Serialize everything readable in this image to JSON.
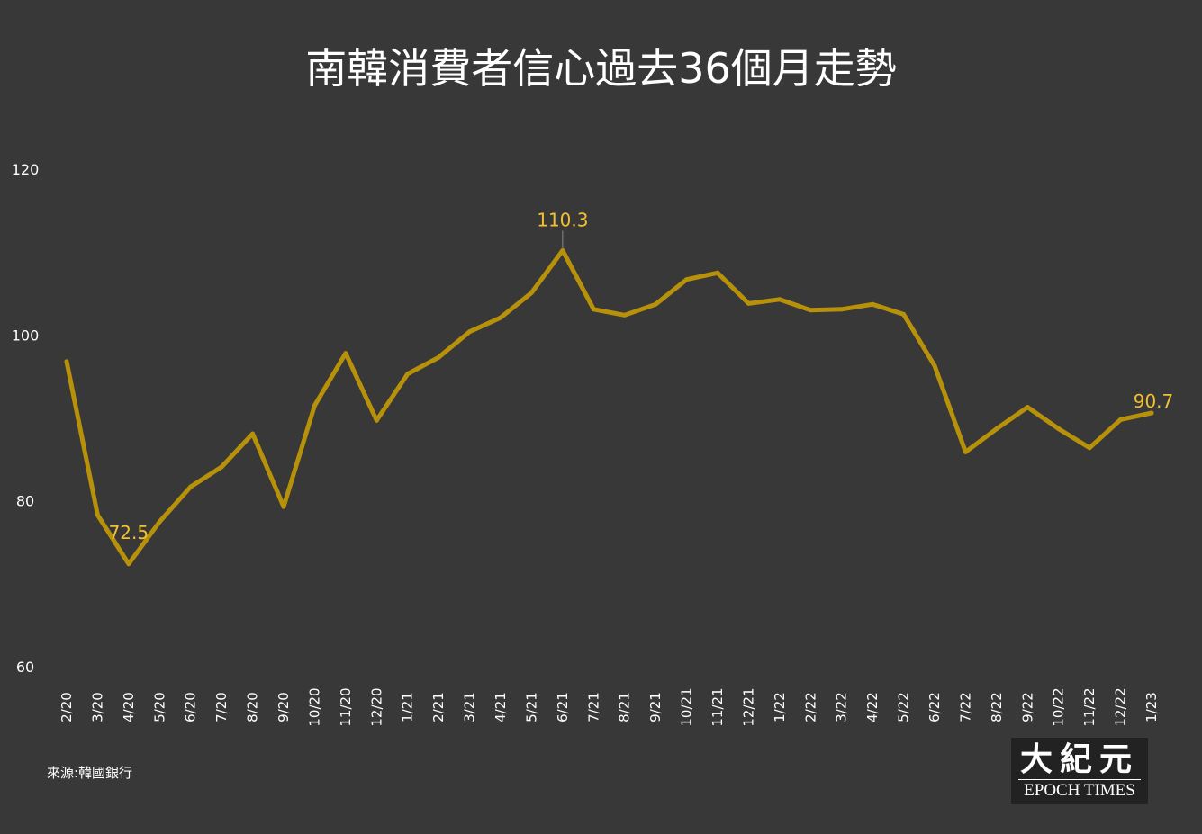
{
  "title": "南韓消費者信心過去36個月走勢",
  "source": "來源:韓國銀行",
  "logo": {
    "chinese": "大紀元",
    "english": "EPOCH TIMES"
  },
  "colors": {
    "background": "#383838",
    "line": "#b8910a",
    "label": "#f2c12e",
    "axis_text": "#ffffff"
  },
  "chart_data": {
    "type": "line",
    "title": "南韓消費者信心過去36個月走勢",
    "ylim": [
      60,
      120
    ],
    "yticks": [
      60,
      80,
      100,
      120
    ],
    "grid": false,
    "categories": [
      "2/20",
      "3/20",
      "4/20",
      "5/20",
      "6/20",
      "7/20",
      "8/20",
      "9/20",
      "10/20",
      "11/20",
      "12/20",
      "1/21",
      "2/21",
      "3/21",
      "4/21",
      "5/21",
      "6/21",
      "7/21",
      "8/21",
      "9/21",
      "10/21",
      "11/21",
      "12/21",
      "1/22",
      "2/22",
      "3/22",
      "4/22",
      "5/22",
      "6/22",
      "7/22",
      "8/22",
      "9/22",
      "10/22",
      "11/22",
      "12/22",
      "1/23"
    ],
    "series": [
      {
        "values": [
          96.9,
          78.4,
          72.5,
          77.6,
          81.8,
          84.2,
          88.2,
          79.4,
          91.6,
          97.9,
          89.8,
          95.4,
          97.4,
          100.5,
          102.2,
          105.2,
          110.3,
          103.2,
          102.5,
          103.8,
          106.8,
          107.6,
          103.9,
          104.4,
          103.1,
          103.2,
          103.8,
          102.6,
          96.4,
          86.0,
          88.8,
          91.4,
          88.8,
          86.5,
          89.9,
          90.7
        ]
      }
    ],
    "annotations": [
      {
        "category": "4/20",
        "value": 72.5,
        "text": "72.5"
      },
      {
        "category": "6/21",
        "value": 110.3,
        "text": "110.3"
      },
      {
        "category": "1/23",
        "value": 90.7,
        "text": "90.7"
      }
    ]
  }
}
